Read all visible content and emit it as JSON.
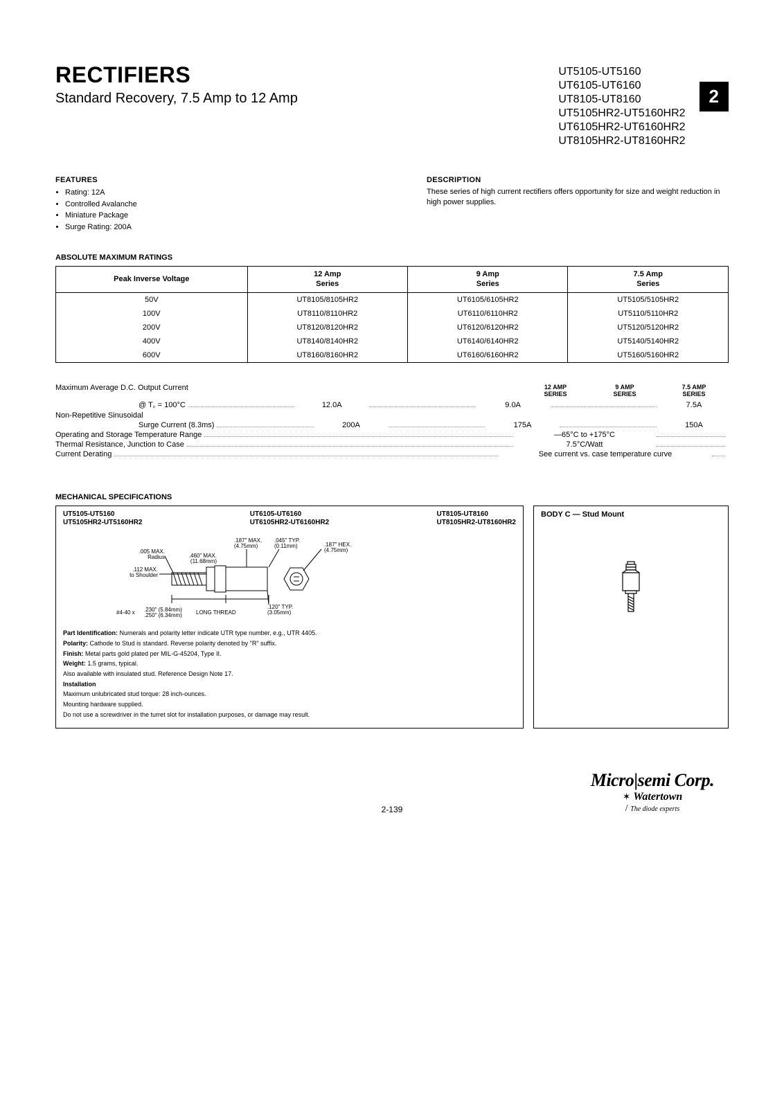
{
  "header": {
    "title": "RECTIFIERS",
    "subtitle": "Standard Recovery, 7.5 Amp to 12 Amp",
    "part_numbers": [
      "UT5105-UT5160",
      "UT6105-UT6160",
      "UT8105-UT8160",
      "UT5105HR2-UT5160HR2",
      "UT6105HR2-UT6160HR2",
      "UT8105HR2-UT8160HR2"
    ],
    "page_badge": "2"
  },
  "features": {
    "heading": "FEATURES",
    "items": [
      "Rating: 12A",
      "Controlled Avalanche",
      "Miniature Package",
      "Surge Rating: 200A"
    ]
  },
  "description": {
    "heading": "DESCRIPTION",
    "text": "These series of high current rectifiers offers opportunity for size and weight reduction in high power supplies."
  },
  "ratings": {
    "heading": "ABSOLUTE MAXIMUM RATINGS",
    "columns": [
      "Peak Inverse Voltage",
      "12 Amp\nSeries",
      "9 Amp\nSeries",
      "7.5 Amp\nSeries"
    ],
    "rows": [
      [
        "50V",
        "UT8105/8105HR2",
        "UT6105/6105HR2",
        "UT5105/5105HR2"
      ],
      [
        "100V",
        "UT8110/8110HR2",
        "UT6110/6110HR2",
        "UT5110/5110HR2"
      ],
      [
        "200V",
        "UT8120/8120HR2",
        "UT6120/6120HR2",
        "UT5120/5120HR2"
      ],
      [
        "400V",
        "UT8140/8140HR2",
        "UT6140/6140HR2",
        "UT5140/5140HR2"
      ],
      [
        "600V",
        "UT8160/8160HR2",
        "UT6160/6160HR2",
        "UT5160/5160HR2"
      ]
    ]
  },
  "specs": {
    "col_headers": [
      "12 AMP\nSERIES",
      "9 AMP\nSERIES",
      "7.5 AMP\nSERIES"
    ],
    "line1_label": "Maximum Average D.C. Output Current",
    "line2_label": "@ T꜀ = 100°C",
    "line2_vals": [
      "12.0A",
      "9.0A",
      "7.5A"
    ],
    "line3_label": "Non-Repetitive Sinusoidal",
    "line4_label": "Surge Current (8.3ms)",
    "line4_vals": [
      "200A",
      "175A",
      "150A"
    ],
    "line5_label": "Operating and Storage Temperature Range",
    "line5_val": "—65°C to +175°C",
    "line6_label": "Thermal Resistance, Junction to Case",
    "line6_val": "7.5°C/Watt",
    "line7_label": "Current Derating",
    "line7_val": "See current vs. case temperature curve"
  },
  "mech": {
    "heading": "MECHANICAL SPECIFICATIONS",
    "col1": [
      "UT5105-UT5160",
      "UT5105HR2-UT5160HR2"
    ],
    "col2": [
      "UT6105-UT6160",
      "UT6105HR2-UT6160HR2"
    ],
    "col3": [
      "UT8105-UT8160",
      "UT8105HR2-UT8160HR2"
    ],
    "dims": {
      "d1": ".187\" MAX.\n(4.75mm)",
      "d2": ".045\" TYP.\n(0.11mm)",
      "d3": ".187\" HEX.\n(4.75mm)",
      "d4": ".005 MAX.\nRadius",
      "d5": ".460\" MAX.\n(11.68mm)",
      "d6": ".112 MAX.\nto Shoulder",
      "d7": ".120\" TYP.\n(3.05mm)",
      "d8": "#4-40 x .230\" (5.84mm)\n.250\" (6.34mm) LONG THREAD"
    },
    "notes": [
      {
        "h": "Part Identification:",
        "t": " Numerals and polarity letter indicate UTR type number, e.g., UTR 4405."
      },
      {
        "h": "Polarity:",
        "t": " Cathode to Stud is standard. Reverse polarity denoted by \"R\" suffix."
      },
      {
        "h": "Finish:",
        "t": " Metal parts gold plated per MIL-G-45204, Type II."
      },
      {
        "h": "Weight:",
        "t": " 1.5 grams, typical."
      },
      {
        "h": "",
        "t": "Also available with insulated stud. Reference Design Note 17."
      },
      {
        "h": "Installation",
        "t": ""
      },
      {
        "h": "",
        "t": "Maximum unlubricated stud torque: 28 inch-ounces."
      },
      {
        "h": "",
        "t": "Mounting hardware supplied."
      },
      {
        "h": "",
        "t": "Do not use a screwdriver in the turret slot for installation purposes, or damage may result."
      }
    ],
    "right_title": "BODY C — Stud Mount"
  },
  "footer": {
    "page_num": "2-139",
    "logo_main": "Microsemi Corp.",
    "logo_sub": "Watertown",
    "logo_tag": "The diode experts"
  }
}
